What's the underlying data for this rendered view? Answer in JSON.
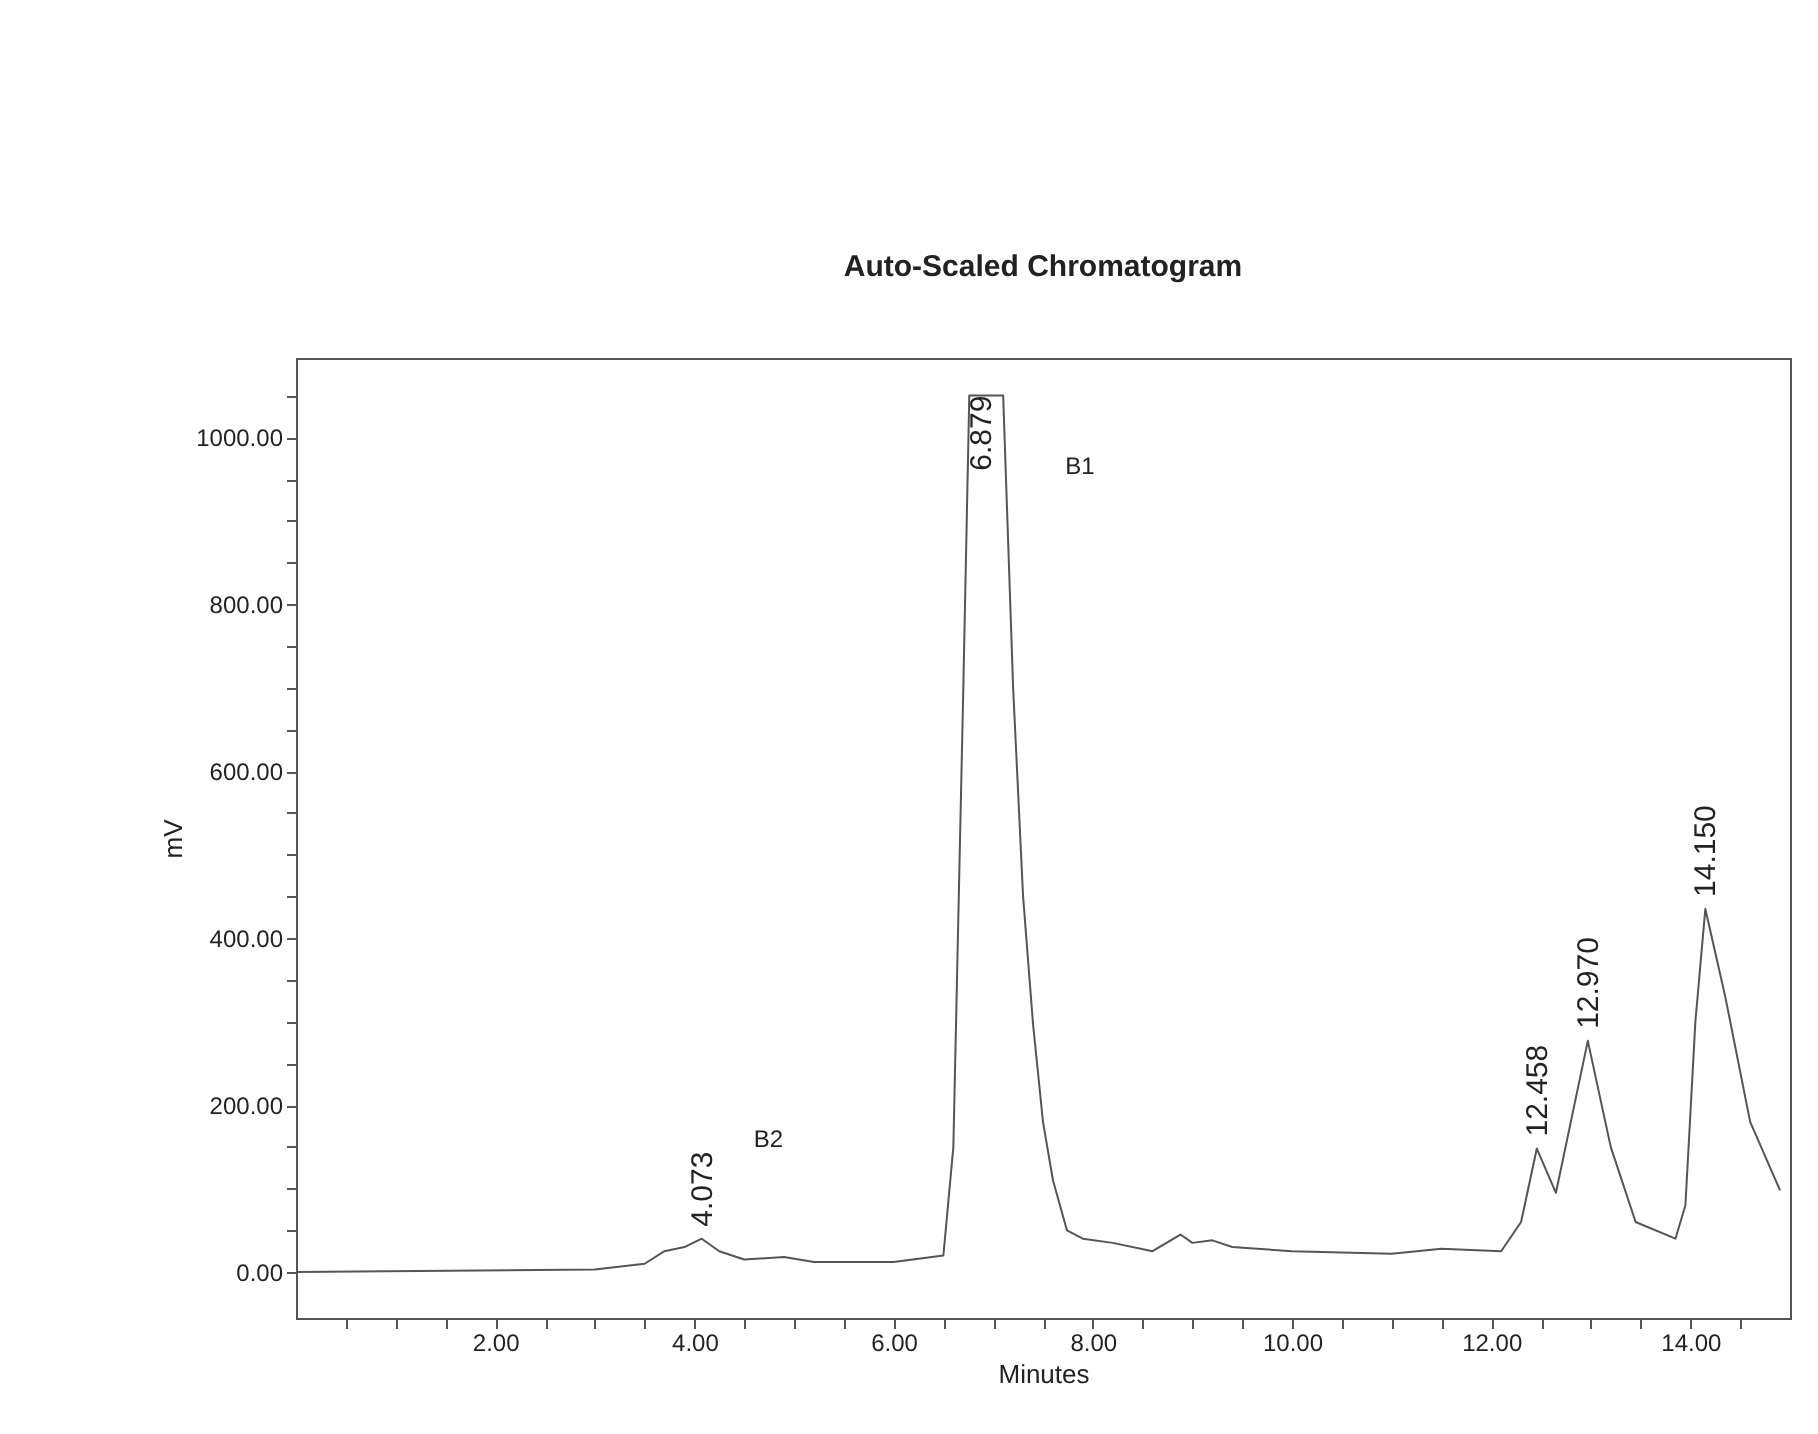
{
  "chart_data": {
    "type": "line",
    "title": "Auto-Scaled Chromatogram",
    "xlabel": "Minutes",
    "ylabel": "mV",
    "series": [
      {
        "color": "#555555",
        "x": [
          0,
          3,
          3.5,
          3.7,
          3.9,
          4.073,
          4.25,
          4.5,
          4.9,
          5.2,
          6.0,
          6.5,
          6.6,
          6.7,
          6.76,
          7.1,
          7.2,
          7.3,
          7.4,
          7.5,
          7.6,
          7.74,
          7.9,
          8.2,
          8.6,
          8.88,
          9.0,
          9.2,
          9.4,
          10,
          11,
          11.5,
          12.1,
          12.3,
          12.458,
          12.65,
          12.97,
          13.2,
          13.45,
          13.85,
          13.95,
          14.05,
          14.15,
          14.35,
          14.6,
          14.9
        ],
        "values": [
          0,
          3,
          10,
          25,
          30,
          40,
          25,
          15,
          18,
          12,
          12,
          20,
          150,
          700,
          1050,
          1050,
          700,
          450,
          297,
          180,
          110,
          50,
          40,
          35,
          25,
          45,
          35,
          38,
          30,
          25,
          22,
          28,
          25,
          60,
          148,
          95,
          277,
          150,
          60,
          40,
          80,
          300,
          435,
          330,
          180,
          98
        ]
      }
    ],
    "xlim": [
      0,
      15
    ],
    "ylim": [
      -55,
      1095
    ],
    "xticks": [
      {
        "value": 0.5,
        "label": null
      },
      {
        "value": 1,
        "label": null
      },
      {
        "value": 1.5,
        "label": null
      },
      {
        "value": 2,
        "label": "2.00"
      },
      {
        "value": 2.5,
        "label": null
      },
      {
        "value": 3,
        "label": null
      },
      {
        "value": 3.5,
        "label": null
      },
      {
        "value": 4,
        "label": "4.00"
      },
      {
        "value": 4.5,
        "label": null
      },
      {
        "value": 5,
        "label": null
      },
      {
        "value": 5.5,
        "label": null
      },
      {
        "value": 6,
        "label": "6.00"
      },
      {
        "value": 6.5,
        "label": null
      },
      {
        "value": 7,
        "label": null
      },
      {
        "value": 7.5,
        "label": null
      },
      {
        "value": 8,
        "label": "8.00"
      },
      {
        "value": 8.5,
        "label": null
      },
      {
        "value": 9,
        "label": null
      },
      {
        "value": 9.5,
        "label": null
      },
      {
        "value": 10,
        "label": "10.00"
      },
      {
        "value": 10.5,
        "label": null
      },
      {
        "value": 11,
        "label": null
      },
      {
        "value": 11.5,
        "label": null
      },
      {
        "value": 12,
        "label": "12.00"
      },
      {
        "value": 12.5,
        "label": null
      },
      {
        "value": 13,
        "label": null
      },
      {
        "value": 13.5,
        "label": null
      },
      {
        "value": 14,
        "label": "14.00"
      },
      {
        "value": 14.5,
        "label": null
      }
    ],
    "yticks": [
      {
        "value": 0,
        "label": "0.00"
      },
      {
        "value": 50,
        "label": null
      },
      {
        "value": 100,
        "label": null
      },
      {
        "value": 150,
        "label": null
      },
      {
        "value": 200,
        "label": "200.00"
      },
      {
        "value": 250,
        "label": null
      },
      {
        "value": 300,
        "label": null
      },
      {
        "value": 350,
        "label": null
      },
      {
        "value": 400,
        "label": "400.00"
      },
      {
        "value": 450,
        "label": null
      },
      {
        "value": 500,
        "label": null
      },
      {
        "value": 550,
        "label": null
      },
      {
        "value": 600,
        "label": "600.00"
      },
      {
        "value": 650,
        "label": null
      },
      {
        "value": 700,
        "label": null
      },
      {
        "value": 750,
        "label": null
      },
      {
        "value": 800,
        "label": "800.00"
      },
      {
        "value": 850,
        "label": null
      },
      {
        "value": 900,
        "label": null
      },
      {
        "value": 950,
        "label": null
      },
      {
        "value": 1000,
        "label": "1000.00"
      },
      {
        "value": 1050,
        "label": null
      }
    ],
    "annotations": [
      {
        "text": "4.073",
        "x": 4.073,
        "y": 40
      },
      "B2",
      {
        "text": "6.879",
        "x": 6.879,
        "y": 1050
      },
      "B1",
      {
        "text": "12.458",
        "x": 12.458,
        "y": 148
      },
      {
        "text": "12.970",
        "x": 12.97,
        "y": 277
      },
      {
        "text": "14.150",
        "x": 14.15,
        "y": 435
      }
    ],
    "grid": false,
    "legend": false,
    "marker": "none",
    "line_style": "solid"
  }
}
